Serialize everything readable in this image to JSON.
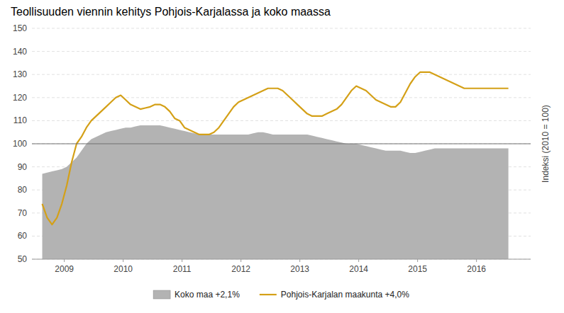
{
  "chart_data": {
    "type": "line",
    "title": "Teollisuuden viennin kehitys Pohjois-Karjalassa ja koko maassa",
    "ylabel": "Indeksi (2010 = 100)",
    "x": [
      2008.625,
      2008.708333,
      2008.791667,
      2008.875,
      2008.958333,
      2009.041667,
      2009.125,
      2009.208333,
      2009.291667,
      2009.375,
      2009.458333,
      2009.541667,
      2009.625,
      2009.708333,
      2009.791667,
      2009.875,
      2009.958333,
      2010.041667,
      2010.125,
      2010.208333,
      2010.291667,
      2010.375,
      2010.458333,
      2010.541667,
      2010.625,
      2010.708333,
      2010.791667,
      2010.875,
      2010.958333,
      2011.041667,
      2011.125,
      2011.208333,
      2011.291667,
      2011.375,
      2011.458333,
      2011.541667,
      2011.625,
      2011.708333,
      2011.791667,
      2011.875,
      2011.958333,
      2012.041667,
      2012.125,
      2012.208333,
      2012.291667,
      2012.375,
      2012.458333,
      2012.541667,
      2012.625,
      2012.708333,
      2012.791667,
      2012.875,
      2012.958333,
      2013.041667,
      2013.125,
      2013.208333,
      2013.291667,
      2013.375,
      2013.458333,
      2013.541667,
      2013.625,
      2013.708333,
      2013.791667,
      2013.875,
      2013.958333,
      2014.041667,
      2014.125,
      2014.208333,
      2014.291667,
      2014.375,
      2014.458333,
      2014.541667,
      2014.625,
      2014.708333,
      2014.791667,
      2014.875,
      2014.958333,
      2015.041667,
      2015.125,
      2015.208333,
      2015.291667,
      2015.375,
      2015.458333,
      2015.541667,
      2015.625,
      2015.708333,
      2015.791667,
      2015.875,
      2015.958333,
      2016.041667,
      2016.125,
      2016.208333,
      2016.291667,
      2016.375,
      2016.458333,
      2016.541667
    ],
    "series": [
      {
        "name": "Koko maa +2,1%",
        "type": "area",
        "color": "#b3b3b3",
        "values": [
          87,
          87.5,
          88,
          88.5,
          89,
          90,
          92,
          94,
          97,
          100,
          102,
          103,
          104,
          105,
          105.5,
          106,
          106.5,
          107,
          107,
          107.5,
          108,
          108,
          108,
          108,
          108,
          107.5,
          107,
          106.5,
          106,
          105.5,
          105,
          104.5,
          104,
          104,
          104,
          104,
          104,
          104,
          104,
          104,
          104,
          104,
          104,
          104.5,
          105,
          105,
          104.5,
          104,
          104,
          104,
          104,
          104,
          104,
          104,
          104,
          103.5,
          103,
          102.5,
          102,
          101.5,
          101,
          100.5,
          100,
          100,
          100,
          99.5,
          99,
          98.5,
          98,
          97.5,
          97,
          97,
          97,
          97,
          96.5,
          96,
          96,
          96.5,
          97,
          97.5,
          98,
          98,
          98,
          98,
          98,
          98,
          98,
          98,
          98,
          98,
          98,
          98,
          98,
          98,
          98,
          98
        ]
      },
      {
        "name": "Pohjois-Karjalan maakunta +4,0%",
        "type": "line",
        "color": "#d4a017",
        "values": [
          74,
          68,
          65,
          68,
          74,
          82,
          92,
          100,
          103,
          107,
          110,
          112,
          114,
          116,
          118,
          120,
          121,
          119,
          117,
          116,
          115,
          115.5,
          116,
          117,
          117,
          116,
          114,
          111,
          110,
          107,
          106,
          105,
          104,
          104,
          104,
          105,
          107,
          110,
          113,
          116,
          118,
          119,
          120,
          121,
          122,
          123,
          124,
          124,
          124,
          123,
          121,
          119,
          117,
          115,
          113,
          112,
          112,
          112,
          113,
          114,
          115,
          117,
          120,
          123,
          125,
          124,
          123,
          121,
          119,
          118,
          117,
          116,
          116,
          118,
          122,
          126,
          129,
          131,
          131,
          131,
          130,
          129,
          128,
          127,
          126,
          125,
          124,
          124,
          124,
          124,
          124,
          124,
          124,
          124,
          124,
          124
        ]
      }
    ],
    "reference_line": 100,
    "xlim": [
      2008.45,
      2016.92
    ],
    "xticks": [
      2009,
      2010,
      2011,
      2012,
      2013,
      2014,
      2015,
      2016
    ],
    "ylim": [
      50,
      150
    ],
    "yticks": [
      50,
      60,
      70,
      80,
      90,
      100,
      110,
      120,
      130,
      140,
      150
    ],
    "grid": true,
    "legend": "bottom"
  }
}
